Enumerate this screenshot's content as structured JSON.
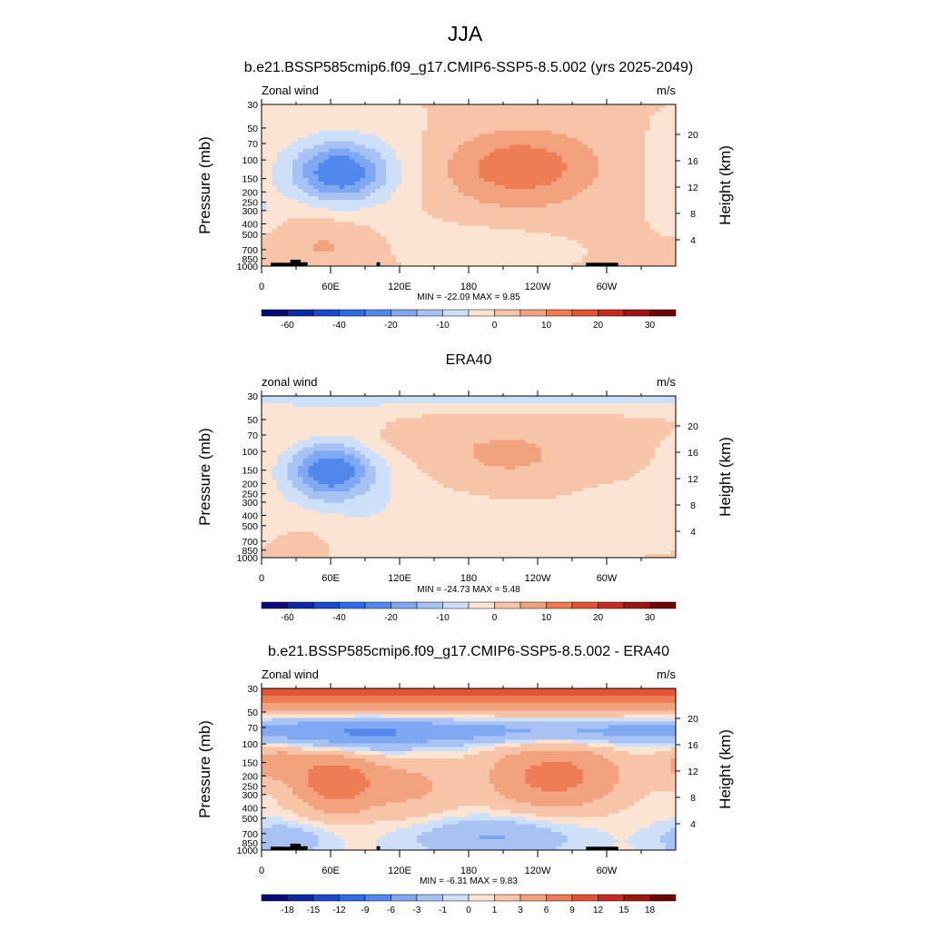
{
  "page": {
    "title": "JJA"
  },
  "chart_data": [
    {
      "type": "heatmap",
      "title": "b.e21.BSSP585cmip6.f09_g17.CMIP6-SSP5-8.5.002 (yrs 2025-2049)",
      "left_label": "Zonal wind",
      "units": "m/s",
      "xlabel": "",
      "ylabel": "Pressure (mb)",
      "y2label": "Height (km)",
      "x_tick_labels": [
        "0",
        "60E",
        "120E",
        "180",
        "120W",
        "60W"
      ],
      "y_tick_labels": [
        "30",
        "50",
        "70",
        "100",
        "150",
        "200",
        "250",
        "300",
        "400",
        "500",
        "700",
        "850",
        "1000"
      ],
      "y2_tick_labels": [
        "20",
        "16",
        "12",
        "8",
        "4"
      ],
      "min_max_text": "MIN = -22.09  MAX =   9.85",
      "stats": {
        "min": -22.09,
        "max": 9.85
      },
      "colorbar": {
        "levels": [
          "-60",
          "-50",
          "-40",
          "-30",
          "-20",
          "-15",
          "-10",
          "-5",
          "0",
          "5",
          "10",
          "15",
          "20",
          "25",
          "30"
        ],
        "labels": [
          "-60",
          "-40",
          "-20",
          "-10",
          "0",
          "10",
          "20",
          "30"
        ],
        "colors": [
          "#08087a",
          "#0b2aa6",
          "#1a48cf",
          "#2f6ae8",
          "#5288ee",
          "#7ea8f2",
          "#a8c2f4",
          "#cde0f8",
          "#fbe4d2",
          "#f7c4a8",
          "#f3a27e",
          "#ee7c55",
          "#e45434",
          "#c72a1e",
          "#9c1511",
          "#6e0505"
        ]
      },
      "orography": true
    },
    {
      "type": "heatmap",
      "title": "ERA40",
      "left_label": "zonal wind",
      "units": "m/s",
      "xlabel": "",
      "ylabel": "Pressure (mb)",
      "y2label": "Height (km)",
      "x_tick_labels": [
        "0",
        "60E",
        "120E",
        "180",
        "120W",
        "60W"
      ],
      "y_tick_labels": [
        "30",
        "50",
        "70",
        "100",
        "150",
        "200",
        "250",
        "300",
        "400",
        "500",
        "700",
        "850",
        "1000"
      ],
      "y2_tick_labels": [
        "20",
        "16",
        "12",
        "8",
        "4"
      ],
      "min_max_text": "MIN = -24.73  MAX =   5.48",
      "stats": {
        "min": -24.73,
        "max": 5.48
      },
      "colorbar": {
        "levels": [
          "-60",
          "-50",
          "-40",
          "-30",
          "-20",
          "-15",
          "-10",
          "-5",
          "0",
          "5",
          "10",
          "15",
          "20",
          "25",
          "30"
        ],
        "labels": [
          "-60",
          "-40",
          "-20",
          "-10",
          "0",
          "10",
          "20",
          "30"
        ],
        "colors": [
          "#08087a",
          "#0b2aa6",
          "#1a48cf",
          "#2f6ae8",
          "#5288ee",
          "#7ea8f2",
          "#a8c2f4",
          "#cde0f8",
          "#fbe4d2",
          "#f7c4a8",
          "#f3a27e",
          "#ee7c55",
          "#e45434",
          "#c72a1e",
          "#9c1511",
          "#6e0505"
        ]
      },
      "orography": false
    },
    {
      "type": "heatmap",
      "title": "b.e21.BSSP585cmip6.f09_g17.CMIP6-SSP5-8.5.002 - ERA40",
      "left_label": "Zonal wind",
      "units": "m/s",
      "xlabel": "",
      "ylabel": "Pressure (mb)",
      "y2label": "Height (km)",
      "x_tick_labels": [
        "0",
        "60E",
        "120E",
        "180",
        "120W",
        "60W"
      ],
      "y_tick_labels": [
        "30",
        "50",
        "70",
        "100",
        "150",
        "200",
        "250",
        "300",
        "400",
        "500",
        "700",
        "850",
        "1000"
      ],
      "y2_tick_labels": [
        "20",
        "16",
        "12",
        "8",
        "4"
      ],
      "min_max_text": "MIN = -6.31  MAX =   9.83",
      "stats": {
        "min": -6.31,
        "max": 9.83
      },
      "colorbar": {
        "levels": [
          "-18",
          "-15",
          "-12",
          "-9",
          "-6",
          "-3",
          "-1",
          "0",
          "1",
          "3",
          "6",
          "9",
          "12",
          "15",
          "18"
        ],
        "labels": [
          "-18",
          "-15",
          "-12",
          "-9",
          "-6",
          "-3",
          "-1",
          "0",
          "1",
          "3",
          "6",
          "9",
          "12",
          "15",
          "18"
        ],
        "colors": [
          "#08087a",
          "#0b2aa6",
          "#1a48cf",
          "#2f6ae8",
          "#5288ee",
          "#7ea8f2",
          "#a8c2f4",
          "#cde0f8",
          "#fbe4d2",
          "#f7c4a8",
          "#f3a27e",
          "#ee7c55",
          "#e45434",
          "#c72a1e",
          "#9c1511",
          "#6e0505"
        ]
      },
      "orography": true
    }
  ]
}
